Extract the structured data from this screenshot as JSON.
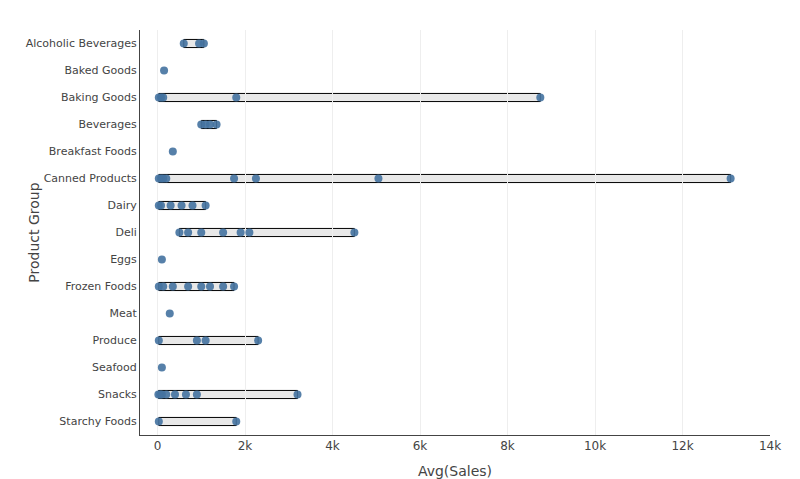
{
  "chart_data": {
    "type": "range",
    "categories": [
      "Alcoholic Beverages",
      "Baked Goods",
      "Baking Goods",
      "Beverages",
      "Breakfast Foods",
      "Canned Products",
      "Dairy",
      "Deli",
      "Eggs",
      "Frozen Foods",
      "Meat",
      "Produce",
      "Seafood",
      "Snacks",
      "Starchy Foods"
    ],
    "series": [
      {
        "type": "scatter",
        "color": "#4472a0",
        "values": [
          [
            600,
            950,
            1060
          ],
          [
            150
          ],
          [
            30,
            80,
            130,
            1800,
            8750
          ],
          [
            1000,
            1100,
            1200,
            1350
          ],
          [
            350
          ],
          [
            30,
            80,
            130,
            200,
            1750,
            2250,
            5050,
            13100
          ],
          [
            30,
            80,
            300,
            550,
            800,
            1100
          ],
          [
            500,
            700,
            1000,
            1500,
            1900,
            2100,
            4500
          ],
          [
            100
          ],
          [
            30,
            130,
            350,
            700,
            1000,
            1200,
            1500,
            1750
          ],
          [
            280
          ],
          [
            30,
            900,
            1100,
            2300
          ],
          [
            100
          ],
          [
            20,
            60,
            100,
            200,
            400,
            650,
            900,
            3200
          ],
          [
            30,
            1800
          ]
        ]
      },
      {
        "type": "range",
        "color": "#e8e8e8",
        "values": [
          [
            600,
            1060
          ],
          null,
          [
            30,
            8750
          ],
          [
            1000,
            1350
          ],
          null,
          [
            30,
            13100
          ],
          [
            30,
            1100
          ],
          [
            500,
            4500
          ],
          null,
          [
            30,
            1750
          ],
          null,
          [
            30,
            2300
          ],
          null,
          [
            20,
            3200
          ],
          [
            30,
            1800
          ]
        ]
      }
    ],
    "xlim": [
      -400,
      14000
    ],
    "xticks": [
      0,
      {
        "value": 2000,
        "label": "2k"
      },
      {
        "value": 4000,
        "label": "4k"
      },
      {
        "value": 6000,
        "label": "6k"
      },
      {
        "value": 8000,
        "label": "8k"
      },
      {
        "value": 10000,
        "label": "10k"
      },
      {
        "value": 12000,
        "label": "12k"
      },
      {
        "value": 14000,
        "label": "14k"
      }
    ],
    "xlabel": "Avg(Sales)",
    "ylabel": "Product Group",
    "grid": true
  }
}
